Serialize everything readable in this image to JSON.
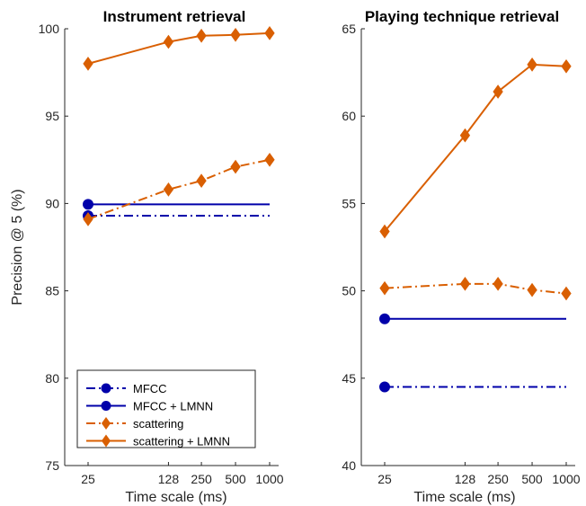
{
  "chart_data": [
    {
      "type": "line",
      "title": "Instrument retrieval",
      "xlabel": "Time scale (ms)",
      "ylabel": "Precision @ 5 (%)",
      "x_scale": "log",
      "x": [
        25,
        128,
        250,
        500,
        1000
      ],
      "x_tick_labels": [
        "25",
        "128",
        "250",
        "500",
        "1000"
      ],
      "ylim": [
        75,
        100
      ],
      "y_ticks": [
        75,
        80,
        85,
        90,
        95,
        100
      ],
      "legend_position": "bottom-left",
      "series": [
        {
          "name": "MFCC",
          "values": [
            89.3,
            89.3,
            89.3,
            89.3,
            89.3
          ],
          "color": "#0000aa",
          "style": "dashdot",
          "marker": "circle",
          "markers_at": [
            0
          ]
        },
        {
          "name": "MFCC + LMNN",
          "values": [
            89.95,
            89.95,
            89.95,
            89.95,
            89.95
          ],
          "color": "#0000aa",
          "style": "solid",
          "marker": "circle",
          "markers_at": [
            0
          ]
        },
        {
          "name": "scattering",
          "values": [
            89.1,
            90.8,
            91.3,
            92.1,
            92.5
          ],
          "color": "#d95f02",
          "style": "dashdot",
          "marker": "diamond",
          "markers_at": [
            0,
            1,
            2,
            3,
            4
          ]
        },
        {
          "name": "scattering + LMNN",
          "values": [
            98.0,
            99.25,
            99.6,
            99.65,
            99.75
          ],
          "color": "#d95f02",
          "style": "solid",
          "marker": "diamond",
          "markers_at": [
            0,
            1,
            2,
            3,
            4
          ]
        }
      ]
    },
    {
      "type": "line",
      "title": "Playing technique retrieval",
      "xlabel": "Time scale (ms)",
      "ylabel": "",
      "x_scale": "log",
      "x": [
        25,
        128,
        250,
        500,
        1000
      ],
      "x_tick_labels": [
        "25",
        "128",
        "250",
        "500",
        "1000"
      ],
      "ylim": [
        40,
        65
      ],
      "y_ticks": [
        40,
        45,
        50,
        55,
        60,
        65
      ],
      "series": [
        {
          "name": "MFCC",
          "values": [
            44.5,
            44.5,
            44.5,
            44.5,
            44.5
          ],
          "color": "#0000aa",
          "style": "dashdot",
          "marker": "circle",
          "markers_at": [
            0
          ]
        },
        {
          "name": "MFCC + LMNN",
          "values": [
            48.4,
            48.4,
            48.4,
            48.4,
            48.4
          ],
          "color": "#0000aa",
          "style": "solid",
          "marker": "circle",
          "markers_at": [
            0
          ]
        },
        {
          "name": "scattering",
          "values": [
            50.15,
            50.4,
            50.4,
            50.05,
            49.85
          ],
          "color": "#d95f02",
          "style": "dashdot",
          "marker": "diamond",
          "markers_at": [
            0,
            1,
            2,
            3,
            4
          ]
        },
        {
          "name": "scattering + LMNN",
          "values": [
            53.4,
            58.9,
            61.4,
            62.95,
            62.85
          ],
          "color": "#d95f02",
          "style": "solid",
          "marker": "diamond",
          "markers_at": [
            0,
            1,
            2,
            3,
            4
          ]
        }
      ]
    }
  ]
}
